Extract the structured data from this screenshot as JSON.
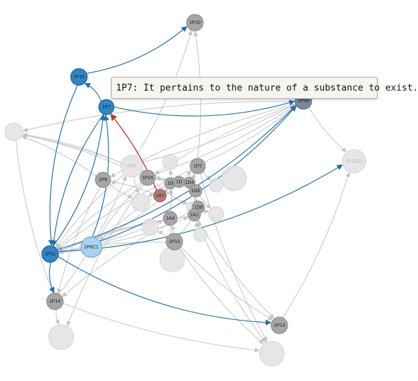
{
  "colors": {
    "edge_default": "#c4c4c4",
    "edge_highlight": "#1f6fab",
    "edge_red": "#c0392b",
    "node_grey": "#a6a6a6",
    "node_grey_stroke": "#8c8c8c",
    "node_faded": "#e2e2e2",
    "node_blue": "#2f86c8",
    "node_blue_stroke": "#1a5d92",
    "node_lightblue": "#a9d2f0",
    "node_lightblue_stroke": "#6fa9d6",
    "node_slate": "#7a8a98",
    "node_red": "#b87878"
  },
  "nodes": [
    {
      "id": "1P20",
      "label": "1P20",
      "style": "grey"
    },
    {
      "id": "1P19",
      "label": "1P19",
      "style": "blue"
    },
    {
      "id": "1P7",
      "label": "1P7",
      "style": "blue"
    },
    {
      "id": "1P34",
      "label": "1P34",
      "style": "slate"
    },
    {
      "id": "1P13C1",
      "label": "1P13C1",
      "style": "faded"
    },
    {
      "id": "1P2",
      "label": "1P2",
      "style": "grey"
    },
    {
      "id": "1P5",
      "label": "1P5",
      "style": "faded"
    },
    {
      "id": "1P6",
      "label": "1P6",
      "style": "grey"
    },
    {
      "id": "1P24",
      "label": "1P24",
      "style": "grey"
    },
    {
      "id": "1D_a",
      "label": "1D",
      "style": "grey"
    },
    {
      "id": "1D_b",
      "label": "1D",
      "style": "grey"
    },
    {
      "id": "1D4",
      "label": "1D4",
      "style": "grey"
    },
    {
      "id": "1D6",
      "label": "1D6",
      "style": "grey"
    },
    {
      "id": "1A7",
      "label": "1A7",
      "style": "red"
    },
    {
      "id": "1D8",
      "label": "1D8",
      "style": "grey"
    },
    {
      "id": "1A1",
      "label": "1A1",
      "style": "grey"
    },
    {
      "id": "1A4",
      "label": "1A4",
      "style": "grey"
    },
    {
      "id": "1P10",
      "label": "1P10",
      "style": "grey"
    },
    {
      "id": "1P6C1",
      "label": "1P6C1",
      "style": "lightblue"
    },
    {
      "id": "1P11",
      "label": "1P11",
      "style": "blue"
    },
    {
      "id": "1P14",
      "label": "1P14",
      "style": "grey"
    },
    {
      "id": "1P13",
      "label": "1P13",
      "style": "grey"
    },
    {
      "id": "f1",
      "label": "",
      "style": "faded"
    },
    {
      "id": "f2",
      "label": "",
      "style": "faded"
    },
    {
      "id": "f3",
      "label": "",
      "style": "faded"
    },
    {
      "id": "f4",
      "label": "",
      "style": "faded"
    },
    {
      "id": "f5",
      "label": "",
      "style": "faded"
    },
    {
      "id": "f6",
      "label": "",
      "style": "faded"
    },
    {
      "id": "f7",
      "label": "",
      "style": "faded"
    },
    {
      "id": "f8",
      "label": "",
      "style": "faded"
    },
    {
      "id": "f9",
      "label": "",
      "style": "faded"
    },
    {
      "id": "f10",
      "label": "",
      "style": "faded"
    },
    {
      "id": "f11",
      "label": "",
      "style": "faded"
    },
    {
      "id": "f12",
      "label": "",
      "style": "faded"
    }
  ],
  "edges": [
    {
      "source": "1P7",
      "target": "1P19",
      "style": "highlight"
    },
    {
      "source": "1P19",
      "target": "1P20",
      "style": "highlight"
    },
    {
      "source": "1P7",
      "target": "1P34",
      "style": "highlight"
    },
    {
      "source": "1P19",
      "target": "1P11",
      "style": "highlight"
    },
    {
      "source": "1P7",
      "target": "1P11",
      "style": "highlight"
    },
    {
      "source": "1P11",
      "target": "1P7",
      "style": "highlight"
    },
    {
      "source": "1P6C1",
      "target": "1P7",
      "style": "highlight"
    },
    {
      "source": "1P11",
      "target": "1P14",
      "style": "highlight"
    },
    {
      "source": "1P11",
      "target": "1P13",
      "style": "highlight"
    },
    {
      "source": "1P11",
      "target": "1P34",
      "style": "highlight"
    },
    {
      "source": "1P11",
      "target": "1P13C1",
      "style": "highlight"
    },
    {
      "source": "1P6C1",
      "target": "1P34",
      "style": "highlight"
    },
    {
      "source": "1A7",
      "target": "1P7",
      "style": "red"
    },
    {
      "source": "1P2",
      "target": "1P20",
      "style": "default"
    },
    {
      "source": "1P5",
      "target": "1P20",
      "style": "default"
    },
    {
      "source": "1P34",
      "target": "1P13C1",
      "style": "default"
    },
    {
      "source": "1P13",
      "target": "1P13C1",
      "style": "default"
    },
    {
      "source": "1P2",
      "target": "1P34",
      "style": "default"
    },
    {
      "source": "1P24",
      "target": "1P34",
      "style": "default"
    },
    {
      "source": "1P24",
      "target": "f1",
      "style": "default"
    },
    {
      "source": "1P5",
      "target": "f1",
      "style": "default"
    },
    {
      "source": "1P6",
      "target": "f1",
      "style": "default"
    },
    {
      "source": "1D_a",
      "target": "f1",
      "style": "default"
    },
    {
      "source": "1A4",
      "target": "1P11",
      "style": "default"
    },
    {
      "source": "1P10",
      "target": "1P11",
      "style": "default"
    },
    {
      "source": "1A1",
      "target": "1P11",
      "style": "default"
    },
    {
      "source": "1P24",
      "target": "1P11",
      "style": "default"
    },
    {
      "source": "1P5",
      "target": "1P11",
      "style": "default"
    },
    {
      "source": "1P2",
      "target": "1P11",
      "style": "default"
    },
    {
      "source": "1D8",
      "target": "1P14",
      "style": "default"
    },
    {
      "source": "1P6",
      "target": "1P14",
      "style": "default"
    },
    {
      "source": "1P14",
      "target": "f2",
      "style": "default"
    },
    {
      "source": "1P14",
      "target": "f3",
      "style": "default"
    },
    {
      "source": "1P10",
      "target": "f3",
      "style": "default"
    },
    {
      "source": "1A1",
      "target": "f3",
      "style": "default"
    },
    {
      "source": "1P2",
      "target": "f3",
      "style": "default"
    },
    {
      "source": "1P10",
      "target": "1P13",
      "style": "default"
    },
    {
      "source": "1A1",
      "target": "1P13",
      "style": "default"
    },
    {
      "source": "1P24",
      "target": "1P6C1",
      "style": "default"
    },
    {
      "source": "1D_b",
      "target": "1P6C1",
      "style": "default"
    },
    {
      "source": "f1",
      "target": "1P14",
      "style": "default"
    },
    {
      "source": "1P24",
      "target": "f2",
      "style": "default"
    },
    {
      "source": "1D4",
      "target": "1P2",
      "style": "default"
    },
    {
      "source": "1D_a",
      "target": "1P5",
      "style": "default"
    },
    {
      "source": "1D_b",
      "target": "1P24",
      "style": "default"
    },
    {
      "source": "1D4",
      "target": "1P24",
      "style": "default"
    },
    {
      "source": "1D6",
      "target": "1D4",
      "style": "default"
    },
    {
      "source": "1A1",
      "target": "1D6",
      "style": "default"
    },
    {
      "source": "1A1",
      "target": "1D8",
      "style": "default"
    },
    {
      "source": "1A4",
      "target": "1D_a",
      "style": "default"
    },
    {
      "source": "1A7",
      "target": "1D_a",
      "style": "default"
    },
    {
      "source": "1A7",
      "target": "1P6",
      "style": "default"
    },
    {
      "source": "1P10",
      "target": "1A4",
      "style": "default"
    },
    {
      "source": "1P10",
      "target": "1D8",
      "style": "default"
    },
    {
      "source": "1A4",
      "target": "f5",
      "style": "default"
    },
    {
      "source": "1P5",
      "target": "f6",
      "style": "default"
    },
    {
      "source": "1P6",
      "target": "f6",
      "style": "default"
    },
    {
      "source": "1D_a",
      "target": "f6",
      "style": "default"
    },
    {
      "source": "1D6",
      "target": "f7",
      "style": "default"
    },
    {
      "source": "1D8",
      "target": "f7",
      "style": "default"
    },
    {
      "source": "1P2",
      "target": "f8",
      "style": "default"
    },
    {
      "source": "1A1",
      "target": "f9",
      "style": "default"
    },
    {
      "source": "1D8",
      "target": "f9",
      "style": "default"
    },
    {
      "source": "1P10",
      "target": "f10",
      "style": "default"
    },
    {
      "source": "1A4",
      "target": "f11",
      "style": "default"
    },
    {
      "source": "1P24",
      "target": "f12",
      "style": "default"
    },
    {
      "source": "1P34",
      "target": "f1",
      "style": "default"
    },
    {
      "source": "1P34",
      "target": "1P6",
      "style": "default"
    },
    {
      "source": "1P34",
      "target": "1P24",
      "style": "default"
    },
    {
      "source": "1P5",
      "target": "1P34",
      "style": "default"
    },
    {
      "source": "1P6C1",
      "target": "1P2",
      "style": "default"
    },
    {
      "source": "1P6C1",
      "target": "1A1",
      "style": "default"
    },
    {
      "source": "1P11",
      "target": "1A4",
      "style": "default"
    },
    {
      "source": "1P14",
      "target": "1P5",
      "style": "default"
    }
  ],
  "tooltip": {
    "text": "1P7: It pertains to the nature of a substance to exist."
  }
}
